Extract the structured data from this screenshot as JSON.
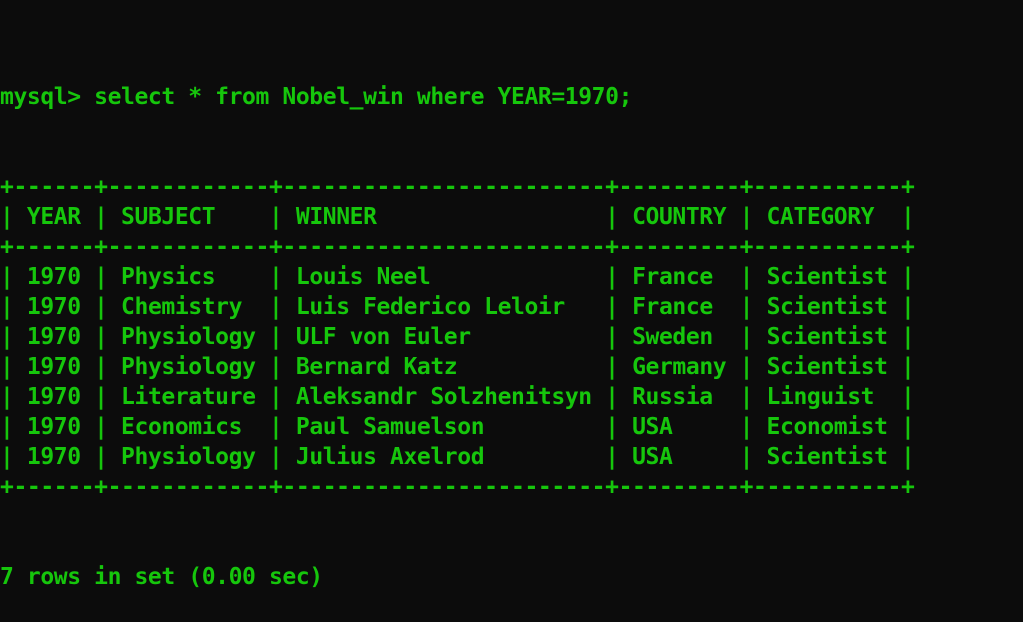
{
  "prompt": "mysql>",
  "command": "select * from Nobel_win where YEAR=1970;",
  "columns": [
    "YEAR",
    "SUBJECT",
    "WINNER",
    "COUNTRY",
    "CATEGORY"
  ],
  "rows": [
    [
      "1970",
      "Physics",
      "Louis Neel",
      "France",
      "Scientist"
    ],
    [
      "1970",
      "Chemistry",
      "Luis Federico Leloir",
      "France",
      "Scientist"
    ],
    [
      "1970",
      "Physiology",
      "ULF von Euler",
      "Sweden",
      "Scientist"
    ],
    [
      "1970",
      "Physiology",
      "Bernard Katz",
      "Germany",
      "Scientist"
    ],
    [
      "1970",
      "Literature",
      "Aleksandr Solzhenitsyn",
      "Russia",
      "Linguist"
    ],
    [
      "1970",
      "Economics",
      "Paul Samuelson",
      "USA",
      "Economist"
    ],
    [
      "1970",
      "Physiology",
      "Julius Axelrod",
      "USA",
      "Scientist"
    ]
  ],
  "result_summary": "7 rows in set (0.00 sec)",
  "colors": {
    "background": "#0c0c0c",
    "text": "#16c60c"
  }
}
